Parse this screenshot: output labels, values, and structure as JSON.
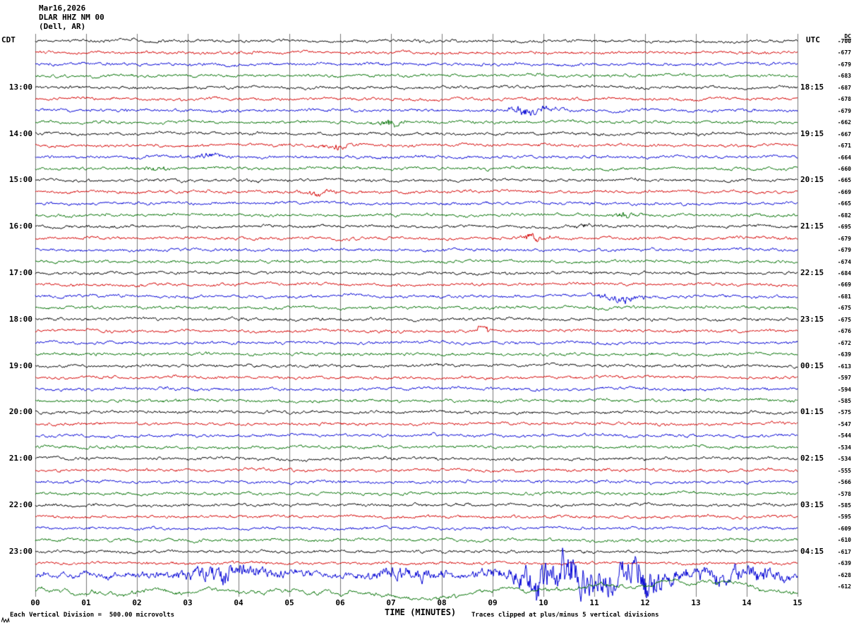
{
  "header": {
    "date": "Mar16,2026",
    "station": "DLAR HHZ NM 00",
    "location": "(Dell, AR)"
  },
  "axes": {
    "left_tz": "CDT",
    "right_tz": "UTC",
    "dc_header": "DC",
    "xlabel": "TIME (MINUTES)",
    "x_ticks": [
      "00",
      "01",
      "02",
      "03",
      "04",
      "05",
      "06",
      "07",
      "08",
      "09",
      "10",
      "11",
      "12",
      "13",
      "14",
      "15"
    ]
  },
  "footer": {
    "left": "Each Vertical Division =  500.00 microvolts",
    "right": "Traces clipped at plus/minus 5 vertical divisions"
  },
  "colors": {
    "black": "#000000",
    "red": "#d40000",
    "blue": "#0000d4",
    "green": "#007000",
    "grid": "#787878"
  },
  "chart_data": {
    "type": "line",
    "title": "Webicorder seismogram DLAR HHZ NM 00 (Dell, AR) Mar16,2026",
    "xlabel": "TIME (MINUTES)",
    "x_range_minutes": [
      0,
      15
    ],
    "minutes_per_line": 15,
    "grid": "vertical lines at each minute",
    "trace_color_cycle": [
      "black",
      "red",
      "blue",
      "green"
    ],
    "vertical_division_microvolts": 500.0,
    "clip_divisions": 5,
    "rows": [
      {
        "color": "black",
        "left": "",
        "right": "",
        "dc": "-700"
      },
      {
        "color": "red",
        "left": "",
        "right": "",
        "dc": "-677"
      },
      {
        "color": "blue",
        "left": "",
        "right": "",
        "dc": "-679"
      },
      {
        "color": "green",
        "left": "",
        "right": "",
        "dc": "-683"
      },
      {
        "color": "black",
        "left": "13:00",
        "right": "18:15",
        "dc": "-687"
      },
      {
        "color": "red",
        "left": "",
        "right": "",
        "dc": "-678"
      },
      {
        "color": "blue",
        "left": "",
        "right": "",
        "dc": "-679",
        "events": [
          {
            "t": 9.75,
            "d": 0.5,
            "m": 4
          }
        ]
      },
      {
        "color": "green",
        "left": "",
        "right": "",
        "dc": "-662",
        "events": [
          {
            "t": 7.0,
            "d": 0.35,
            "m": 3
          }
        ]
      },
      {
        "color": "black",
        "left": "14:00",
        "right": "19:15",
        "dc": "-667"
      },
      {
        "color": "red",
        "left": "",
        "right": "",
        "dc": "-671",
        "events": [
          {
            "t": 5.9,
            "d": 0.4,
            "m": 2.5
          }
        ]
      },
      {
        "color": "blue",
        "left": "",
        "right": "",
        "dc": "-664",
        "events": [
          {
            "t": 3.4,
            "d": 0.4,
            "m": 2.5
          }
        ]
      },
      {
        "color": "green",
        "left": "",
        "right": "",
        "dc": "-660",
        "events": [
          {
            "t": 2.4,
            "d": 0.35,
            "m": 2.5
          }
        ]
      },
      {
        "color": "black",
        "left": "15:00",
        "right": "20:15",
        "dc": "-665"
      },
      {
        "color": "red",
        "left": "",
        "right": "",
        "dc": "-669",
        "events": [
          {
            "t": 5.6,
            "d": 0.4,
            "m": 2.5
          }
        ]
      },
      {
        "color": "blue",
        "left": "",
        "right": "",
        "dc": "-665"
      },
      {
        "color": "green",
        "left": "",
        "right": "",
        "dc": "-682",
        "events": [
          {
            "t": 11.6,
            "d": 0.3,
            "m": 2.5
          }
        ]
      },
      {
        "color": "black",
        "left": "16:00",
        "right": "21:15",
        "dc": "-695",
        "events": [
          {
            "t": 10.8,
            "d": 0.3,
            "m": 2
          }
        ]
      },
      {
        "color": "red",
        "left": "",
        "right": "",
        "dc": "-679",
        "events": [
          {
            "t": 9.8,
            "d": 0.45,
            "m": 3
          }
        ]
      },
      {
        "color": "blue",
        "left": "",
        "right": "",
        "dc": "-679"
      },
      {
        "color": "green",
        "left": "",
        "right": "",
        "dc": "-674"
      },
      {
        "color": "black",
        "left": "17:00",
        "right": "22:15",
        "dc": "-684"
      },
      {
        "color": "red",
        "left": "",
        "right": "",
        "dc": "-669"
      },
      {
        "color": "blue",
        "left": "",
        "right": "",
        "dc": "-681",
        "events": [
          {
            "t": 11.5,
            "d": 0.6,
            "m": 3.5
          }
        ]
      },
      {
        "color": "green",
        "left": "",
        "right": "",
        "dc": "-675"
      },
      {
        "color": "black",
        "left": "18:00",
        "right": "23:15",
        "dc": "-675"
      },
      {
        "color": "red",
        "left": "",
        "right": "",
        "dc": "-676",
        "events": [
          {
            "t": 8.8,
            "d": 0.15,
            "m": 5
          }
        ]
      },
      {
        "color": "blue",
        "left": "",
        "right": "",
        "dc": "-672"
      },
      {
        "color": "green",
        "left": "",
        "right": "",
        "dc": "-639"
      },
      {
        "color": "black",
        "left": "19:00",
        "right": "00:15",
        "dc": "-613"
      },
      {
        "color": "red",
        "left": "",
        "right": "",
        "dc": "-597"
      },
      {
        "color": "blue",
        "left": "",
        "right": "",
        "dc": "-594"
      },
      {
        "color": "green",
        "left": "",
        "right": "",
        "dc": "-585"
      },
      {
        "color": "black",
        "left": "20:00",
        "right": "01:15",
        "dc": "-575"
      },
      {
        "color": "red",
        "left": "",
        "right": "",
        "dc": "-547"
      },
      {
        "color": "blue",
        "left": "",
        "right": "",
        "dc": "-544"
      },
      {
        "color": "green",
        "left": "",
        "right": "",
        "dc": "-534"
      },
      {
        "color": "black",
        "left": "21:00",
        "right": "02:15",
        "dc": "-534"
      },
      {
        "color": "red",
        "left": "",
        "right": "",
        "dc": "-555"
      },
      {
        "color": "blue",
        "left": "",
        "right": "",
        "dc": "-566"
      },
      {
        "color": "green",
        "left": "",
        "right": "",
        "dc": "-578"
      },
      {
        "color": "black",
        "left": "22:00",
        "right": "03:15",
        "dc": "-585"
      },
      {
        "color": "red",
        "left": "",
        "right": "",
        "dc": "-595"
      },
      {
        "color": "blue",
        "left": "",
        "right": "",
        "dc": "-609"
      },
      {
        "color": "green",
        "left": "",
        "right": "",
        "dc": "-610"
      },
      {
        "color": "black",
        "left": "23:00",
        "right": "04:15",
        "dc": "-617"
      },
      {
        "color": "red",
        "left": "",
        "right": "",
        "dc": "-639"
      },
      {
        "color": "blue",
        "left": "",
        "right": "",
        "dc": "-628",
        "amp": 2.2,
        "events": [
          {
            "t": 3.8,
            "d": 1.2,
            "m": 3
          },
          {
            "t": 7.3,
            "d": 0.8,
            "m": 2.5
          },
          {
            "t": 10.5,
            "d": 1.6,
            "m": 7
          },
          {
            "t": 12.0,
            "d": 0.5,
            "m": 5
          },
          {
            "t": 13.6,
            "d": 1.4,
            "m": 3
          }
        ]
      },
      {
        "color": "green",
        "left": "",
        "right": "",
        "dc": "-612",
        "amp": 2.6,
        "slow": true,
        "offset": 6
      }
    ]
  }
}
